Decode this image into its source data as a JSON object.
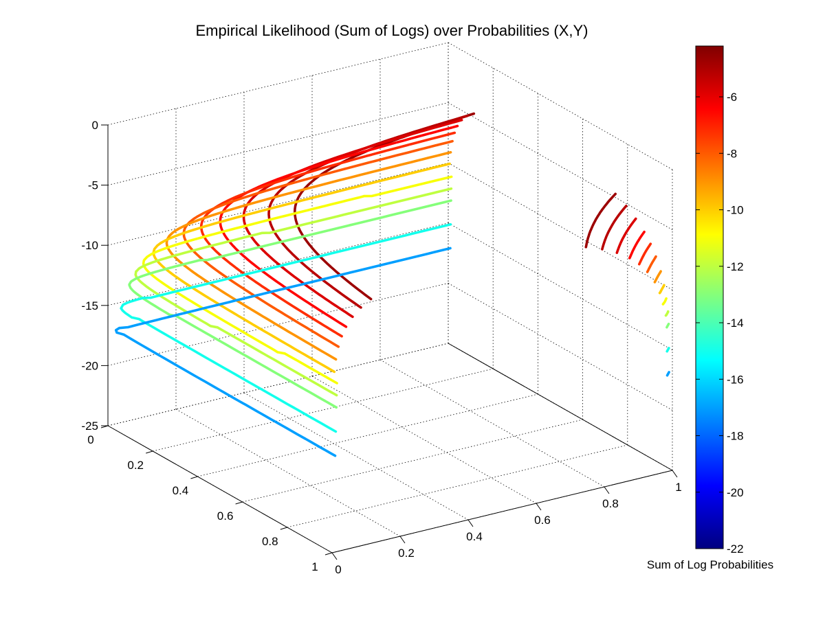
{
  "chart_data": {
    "type": "3d-contour-lines",
    "title": "Empirical Likelihood (Sum of Logs) over Probabilities (X,Y)",
    "xlabel": "",
    "ylabel": "",
    "zlabel": "",
    "x_ticks": [
      "0",
      "0.2",
      "0.4",
      "0.6",
      "0.8",
      "1"
    ],
    "y_ticks": [
      "0",
      "0.2",
      "0.4",
      "0.6",
      "0.8",
      "1"
    ],
    "z_ticks": [
      "0",
      "-5",
      "-10",
      "-15",
      "-20",
      "-25"
    ],
    "xlim": [
      0,
      1
    ],
    "ylim": [
      0,
      1
    ],
    "zlim": [
      -25,
      0
    ],
    "grid": true,
    "colorbar": {
      "label": "Sum of Log Probabilities",
      "range": [
        -22,
        -4.2
      ],
      "ticks": [
        "-6",
        "-8",
        "-10",
        "-12",
        "-14",
        "-16",
        "-18",
        "-20",
        "-22"
      ],
      "colormap": "jet"
    },
    "contour_levels": [
      -4.7,
      -5.2,
      -5.8,
      -6.5,
      -7.2,
      -8.0,
      -9.0,
      -10.0,
      -11.0,
      -12.0,
      -13.0,
      -15.0,
      -17.0
    ]
  }
}
